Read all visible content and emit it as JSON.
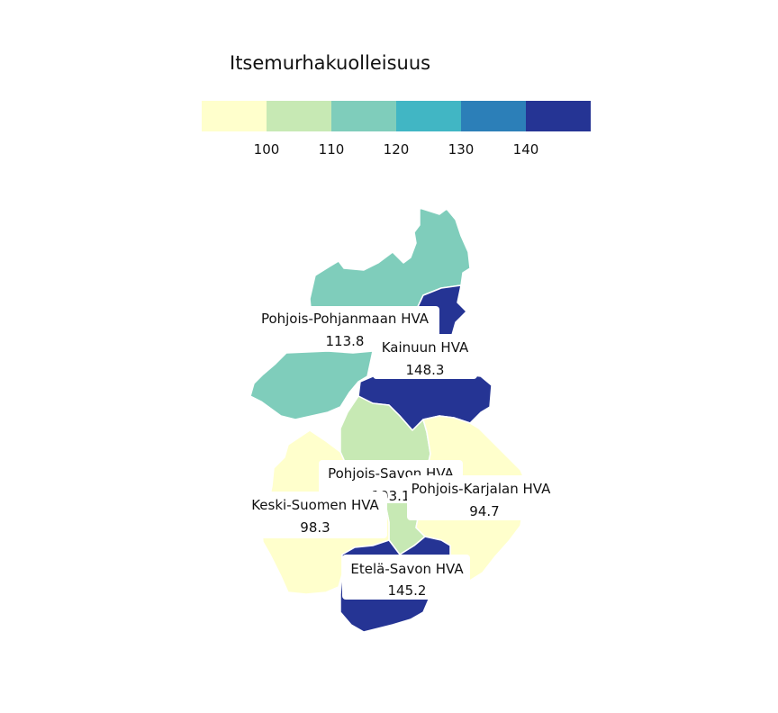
{
  "legend": {
    "title": "Itsemurhakuolleisuus",
    "colors": [
      "#ffffcc",
      "#c7e9b4",
      "#7fcdbb",
      "#41b6c4",
      "#2c7fb8",
      "#253494"
    ],
    "breaks": [
      "100",
      "110",
      "120",
      "130",
      "140"
    ]
  },
  "regions": [
    {
      "id": "pohjois-pohjanmaa",
      "name": "Pohjois-Pohjanmaan HVA",
      "value": "113.8",
      "color": "#7fcdbb"
    },
    {
      "id": "kainuu",
      "name": "Kainuun HVA",
      "value": "148.3",
      "color": "#253494"
    },
    {
      "id": "pohjois-savo",
      "name": "Pohjois-Savon HVA",
      "value": "103.1",
      "color": "#c7e9b4"
    },
    {
      "id": "pohjois-karjala",
      "name": "Pohjois-Karjalan HVA",
      "value": "94.7",
      "color": "#ffffcc"
    },
    {
      "id": "keski-suomi",
      "name": "Keski-Suomen HVA",
      "value": "98.3",
      "color": "#ffffcc"
    },
    {
      "id": "etela-savo",
      "name": "Etelä-Savon HVA",
      "value": "145.2",
      "color": "#253494"
    }
  ]
}
